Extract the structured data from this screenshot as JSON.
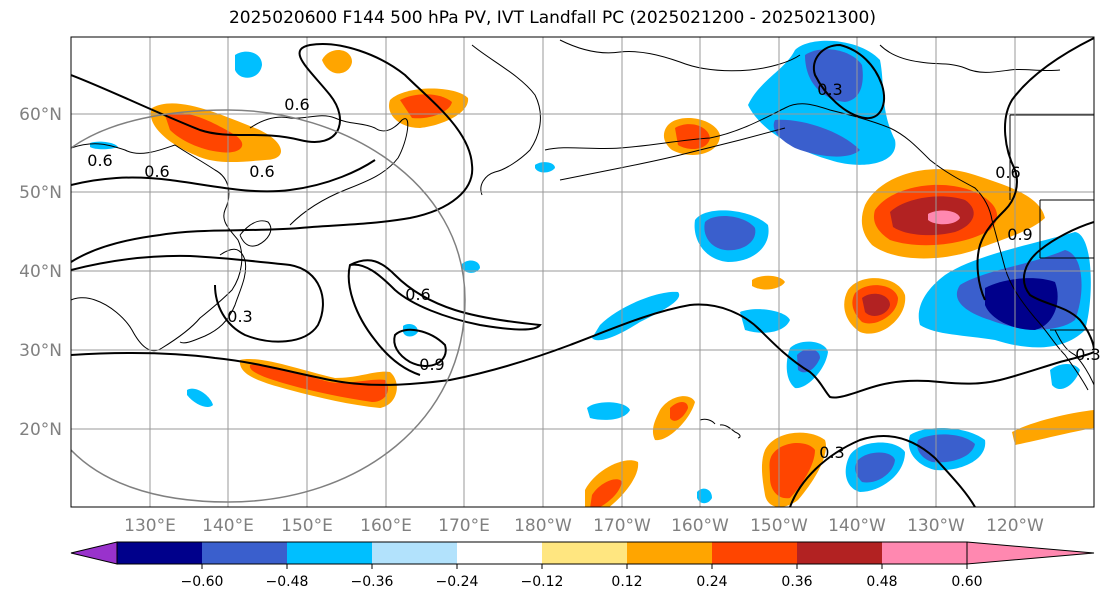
{
  "title": "2025020600 F144 500 hPa PV, IVT Landfall PC (2025021200 - 2025021300)",
  "map": {
    "lat_labels": [
      "60°N",
      "50°N",
      "40°N",
      "30°N",
      "20°N"
    ],
    "lon_labels": [
      "130°E",
      "140°E",
      "150°E",
      "160°E",
      "170°E",
      "180°W",
      "170°W",
      "160°W",
      "150°W",
      "140°W",
      "130°W",
      "120°W"
    ],
    "contour_labels": [
      "0.6",
      "0.6",
      "0.6",
      "0.6",
      "0.3",
      "0.9",
      "0.3",
      "0.6",
      "0.9",
      "0.3",
      "0.6",
      "0.3"
    ]
  },
  "colorbar": {
    "colors": [
      "#9932cc",
      "#00008b",
      "#3a5fcd",
      "#00bfff",
      "#b2e2fc",
      "#ffffff",
      "#ffe680",
      "#ffa500",
      "#ff4500",
      "#b22222",
      "#ff88b0"
    ],
    "tick_labels": [
      "−0.60",
      "−0.48",
      "−0.36",
      "−0.24",
      "−0.12",
      "0.12",
      "0.24",
      "0.36",
      "0.48",
      "0.60"
    ]
  }
}
